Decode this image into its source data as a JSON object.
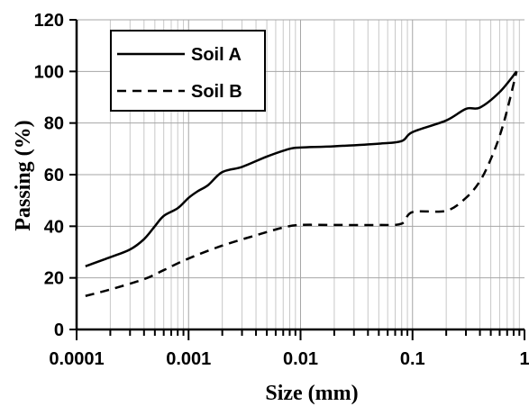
{
  "chart_data": {
    "type": "line",
    "xlabel": "Size (mm)",
    "ylabel": "Passing (%)",
    "xscale": "log",
    "xlim": [
      0.0001,
      1
    ],
    "ylim": [
      0,
      120
    ],
    "xticks": [
      0.0001,
      0.001,
      0.01,
      0.1,
      1
    ],
    "xtick_labels": [
      "0.0001",
      "0.001",
      "0.01",
      "0.1",
      "1"
    ],
    "yticks": [
      0,
      20,
      40,
      60,
      80,
      100,
      120
    ],
    "ytick_labels": [
      "0",
      "20",
      "40",
      "60",
      "80",
      "100",
      "120"
    ],
    "grid": true,
    "legend": "top-left",
    "series": [
      {
        "name": "Soil A",
        "style": "solid",
        "color": "#000000",
        "x": [
          0.00012,
          0.0002,
          0.0003,
          0.0004,
          0.0005,
          0.0006,
          0.0008,
          0.001,
          0.0012,
          0.0015,
          0.002,
          0.003,
          0.005,
          0.008,
          0.01,
          0.02,
          0.05,
          0.08,
          0.1,
          0.2,
          0.3,
          0.4,
          0.6,
          0.85
        ],
        "y": [
          24.5,
          28,
          31,
          35,
          40,
          44,
          47,
          51,
          53.5,
          56,
          61,
          63,
          67,
          70,
          70.5,
          71,
          72,
          73,
          76.5,
          81,
          85.5,
          86,
          92,
          100
        ]
      },
      {
        "name": "Soil B",
        "style": "dashed",
        "color": "#000000",
        "x": [
          0.00012,
          0.0002,
          0.0004,
          0.0006,
          0.001,
          0.002,
          0.004,
          0.007,
          0.01,
          0.02,
          0.05,
          0.08,
          0.1,
          0.2,
          0.3,
          0.4,
          0.5,
          0.6,
          0.7,
          0.85
        ],
        "y": [
          13,
          15.5,
          19.5,
          23,
          27.5,
          32.5,
          36.5,
          39.5,
          40.5,
          40.5,
          40.5,
          41,
          45.5,
          46,
          51,
          57.5,
          66,
          75,
          85,
          100
        ]
      }
    ]
  }
}
